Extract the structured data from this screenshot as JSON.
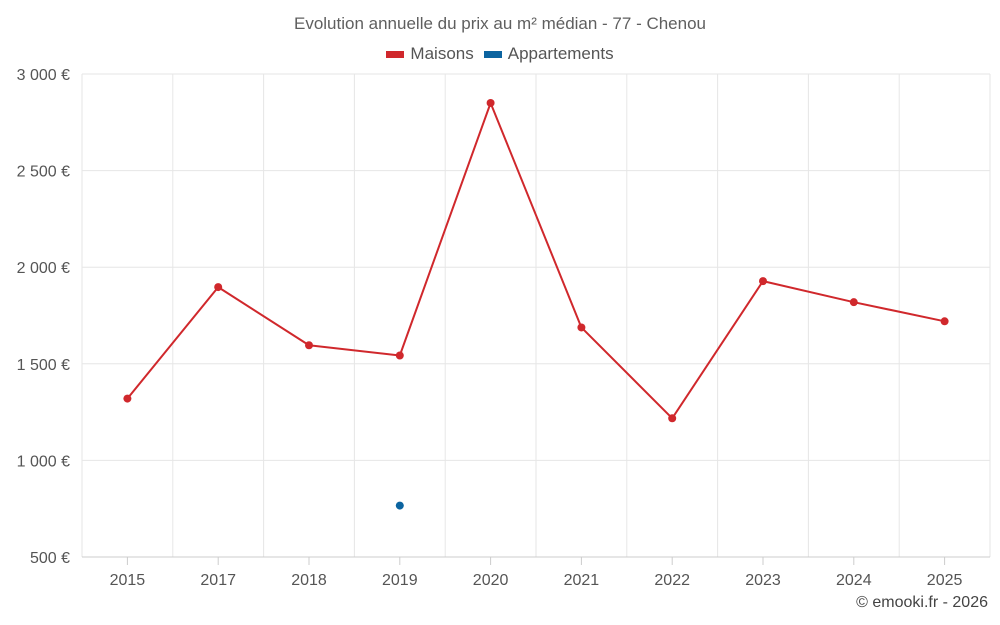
{
  "chart_data": {
    "type": "line",
    "title": "Evolution annuelle du prix au m² médian - 77 - Chenou",
    "categories": [
      "2015",
      "2017",
      "2018",
      "2019",
      "2020",
      "2021",
      "2022",
      "2023",
      "2024",
      "2025"
    ],
    "series": [
      {
        "name": "Maisons",
        "color": "#d0282c",
        "values": [
          1320,
          1897,
          1596,
          1543,
          2850,
          1688,
          1218,
          1928,
          1819,
          1720
        ]
      },
      {
        "name": "Appartements",
        "color": "#0c64a0",
        "values": [
          null,
          null,
          null,
          766,
          null,
          null,
          null,
          null,
          null,
          null
        ]
      }
    ],
    "ylim": [
      500,
      3000
    ],
    "yticks": [
      500,
      1000,
      1500,
      2000,
      2500,
      3000
    ],
    "ytick_labels": [
      "500 €",
      "1 000 €",
      "1 500 €",
      "2 000 €",
      "2 500 €",
      "3 000 €"
    ],
    "grid": true,
    "legend_position": "top-center"
  },
  "credit": "© emooki.fr - 2026"
}
